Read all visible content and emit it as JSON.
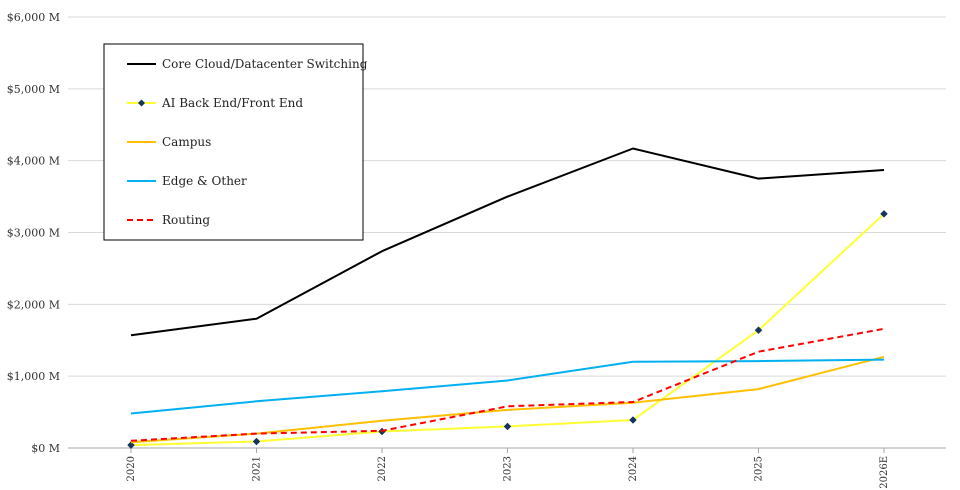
{
  "chart_data": {
    "type": "line",
    "title": "",
    "xlabel": "",
    "ylabel": "",
    "categories": [
      "2020",
      "2021",
      "2022",
      "2023",
      "2024",
      "2025",
      "2026E"
    ],
    "y_ticks": [
      "$0 M",
      "$1,000 M",
      "$2,000 M",
      "$3,000 M",
      "$4,000 M",
      "$5,000 M",
      "$6,000 M"
    ],
    "ylim": [
      0,
      6000
    ],
    "grid": "horizontal",
    "legend_position": "top-left",
    "series": [
      {
        "name": "Core Cloud/Datacenter Switching",
        "color": "#000000",
        "dash": false,
        "marker": false,
        "values": [
          1570,
          1800,
          2740,
          3500,
          4170,
          3750,
          3870
        ]
      },
      {
        "name": "AI Back End/Front End",
        "color": "#ffff33",
        "dash": false,
        "marker": true,
        "values": [
          40,
          90,
          230,
          300,
          390,
          1640,
          3260
        ]
      },
      {
        "name": "Campus",
        "color": "#ffc000",
        "dash": false,
        "marker": false,
        "values": [
          80,
          200,
          380,
          530,
          630,
          820,
          1270
        ]
      },
      {
        "name": "Edge & Other",
        "color": "#00b0f0",
        "dash": false,
        "marker": false,
        "values": [
          480,
          650,
          790,
          940,
          1200,
          1210,
          1230
        ]
      },
      {
        "name": "Routing",
        "color": "#ff0000",
        "dash": true,
        "marker": false,
        "values": [
          100,
          200,
          240,
          580,
          640,
          1340,
          1660
        ]
      }
    ]
  }
}
